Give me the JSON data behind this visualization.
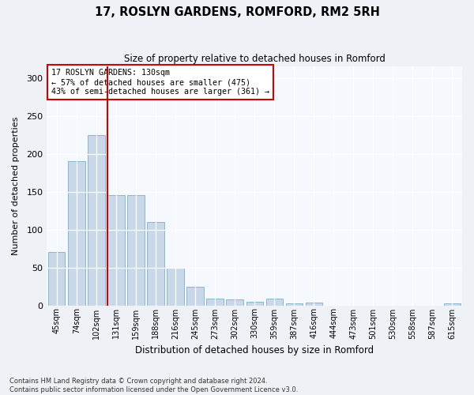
{
  "title": "17, ROSLYN GARDENS, ROMFORD, RM2 5RH",
  "subtitle": "Size of property relative to detached houses in Romford",
  "xlabel": "Distribution of detached houses by size in Romford",
  "ylabel": "Number of detached properties",
  "bar_color": "#c8d8e8",
  "bar_edge_color": "#7aafc8",
  "vline_color": "#cc0000",
  "vline_x": 2.55,
  "annotation_text": "17 ROSLYN GARDENS: 130sqm\n← 57% of detached houses are smaller (475)\n43% of semi-detached houses are larger (361) →",
  "annotation_box_color": "#ffffff",
  "annotation_box_edge": "#cc0000",
  "categories": [
    "45sqm",
    "74sqm",
    "102sqm",
    "131sqm",
    "159sqm",
    "188sqm",
    "216sqm",
    "245sqm",
    "273sqm",
    "302sqm",
    "330sqm",
    "359sqm",
    "387sqm",
    "416sqm",
    "444sqm",
    "473sqm",
    "501sqm",
    "530sqm",
    "558sqm",
    "587sqm",
    "615sqm"
  ],
  "values": [
    70,
    190,
    225,
    145,
    145,
    110,
    50,
    25,
    9,
    8,
    5,
    9,
    3,
    4,
    0,
    0,
    0,
    0,
    0,
    0,
    3
  ],
  "ylim": [
    0,
    315
  ],
  "yticks": [
    0,
    50,
    100,
    150,
    200,
    250,
    300
  ],
  "footnote": "Contains HM Land Registry data © Crown copyright and database right 2024.\nContains public sector information licensed under the Open Government Licence v3.0.",
  "bg_color": "#eef2f7",
  "plot_bg_color": "#f5f8fc",
  "figsize": [
    6.0,
    5.0
  ],
  "dpi": 100
}
